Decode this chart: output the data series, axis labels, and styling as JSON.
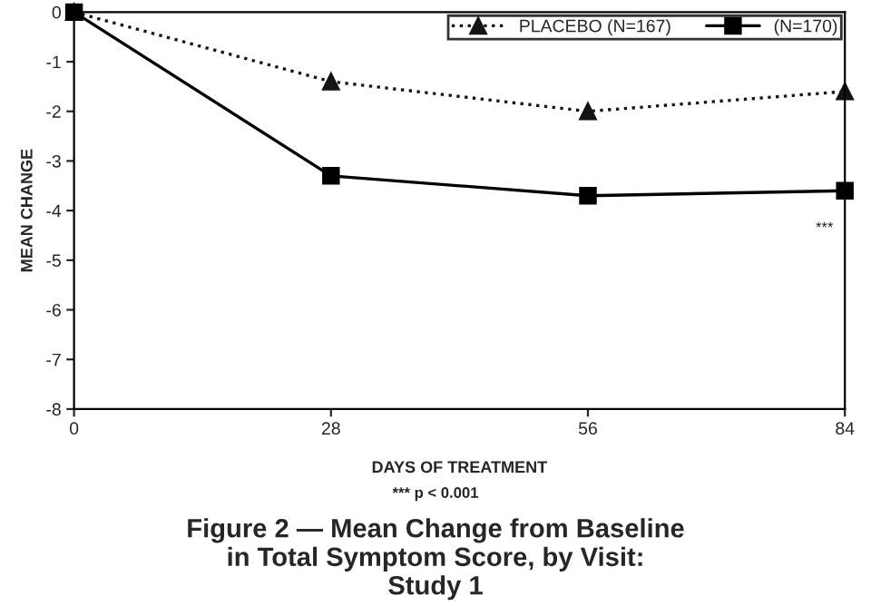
{
  "chart_data": {
    "type": "line",
    "title": "Figure 2 — Mean Change from Baseline\nin Total Symptom Score, by Visit:\nStudy 1",
    "xlabel": "DAYS OF TREATMENT",
    "ylabel": "MEAN CHANGE",
    "x": [
      0,
      28,
      56,
      84
    ],
    "series": [
      {
        "name": "PLACEBO (N=167)",
        "color": "#141414",
        "values": [
          0,
          -1.4,
          -2.0,
          -1.6
        ],
        "marker": "triangle",
        "line_style": "dotted"
      },
      {
        "name": "(N=170)",
        "color": "#000000",
        "values": [
          0,
          -3.3,
          -3.7,
          -3.6
        ],
        "marker": "square",
        "line_style": "solid"
      }
    ],
    "xlim": [
      0,
      84
    ],
    "xticks": [
      0,
      28,
      56,
      84
    ],
    "ylim": [
      -8,
      0
    ],
    "yticks": [
      {
        "value": -8,
        "label": "-8"
      },
      {
        "value": -7,
        "label": "-7"
      },
      {
        "value": -6,
        "label": "-6"
      },
      {
        "value": -5,
        "label": "-5"
      },
      {
        "value": -4,
        "label": "-4"
      },
      {
        "value": -3,
        "label": "-3"
      },
      {
        "value": -2,
        "label": "-2"
      },
      {
        "value": -1,
        "label": "-1"
      },
      0
    ],
    "annotations": [
      "***",
      "*** p < 0.001"
    ],
    "grid": false,
    "legend": "top right"
  }
}
